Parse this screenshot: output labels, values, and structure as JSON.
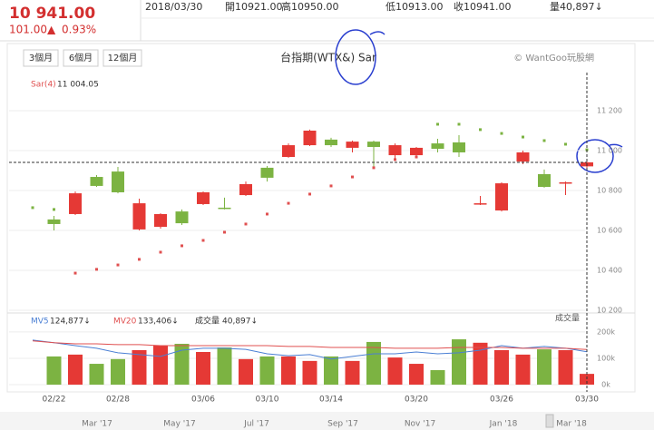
{
  "header": {
    "price": "10 941.00",
    "change": "101.00▲",
    "change_pct": "0.93%",
    "date": "2018/03/30",
    "open": "開10921.00",
    "high": "高10950.00",
    "low": "低10913.00",
    "close": "收10941.00",
    "volume": "量40,897↓"
  },
  "buttons": [
    "3個月",
    "6個月",
    "12個月"
  ],
  "navigator": [
    "Mar '17",
    "May '17",
    "Jul '17",
    "Sep '17",
    "Nov '17",
    "Jan '18",
    "Mar '18"
  ],
  "chart_data": [
    {
      "type": "candlestick",
      "title": "台指期(WTX&) Sar",
      "source": "© WantGoo玩股網",
      "up_color": "#e53935",
      "down_color": "#7cb342",
      "open": [
        null,
        10655,
        10682,
        10868,
        10895,
        10605,
        10618,
        10695,
        10732,
        10714,
        10777,
        10914,
        10968,
        11027,
        11055,
        11014,
        11045,
        10977,
        10977,
        11036,
        11041,
        10732,
        10700,
        10945,
        10882,
        10836,
        10921
      ],
      "high": [
        null,
        10673,
        10795,
        10877,
        10918,
        10759,
        10686,
        10705,
        10795,
        10764,
        10845,
        10923,
        11036,
        11105,
        11064,
        11050,
        11050,
        11036,
        11018,
        11059,
        11077,
        10773,
        10841,
        11000,
        10905,
        10845,
        10950
      ],
      "low": [
        null,
        10600,
        10677,
        10818,
        10786,
        10600,
        10609,
        10627,
        10727,
        10705,
        10773,
        10845,
        10964,
        11023,
        11018,
        10991,
        10914,
        10959,
        10968,
        10991,
        10968,
        10727,
        10695,
        10932,
        10814,
        10777,
        10913
      ],
      "close": [
        null,
        10632,
        10786,
        10823,
        10791,
        10736,
        10682,
        10636,
        10791,
        10709,
        10832,
        10864,
        11027,
        11100,
        11027,
        11045,
        11018,
        11027,
        11014,
        11009,
        10991,
        10736,
        10836,
        10991,
        10818,
        10841,
        10941
      ],
      "series": [
        {
          "name": "Sar(4)",
          "color": "#e05050",
          "down_color": "#7cb342",
          "last_label": "11 004.05",
          "values": [
            10714,
            10705,
            10386,
            10405,
            10427,
            10455,
            10491,
            10523,
            10550,
            10591,
            10632,
            10682,
            10736,
            10782,
            10823,
            10868,
            10914,
            10955,
            10968,
            11132,
            11132,
            11105,
            11086,
            11068,
            11050,
            11032,
            11004.05
          ]
        }
      ],
      "ylim": [
        10200,
        11300
      ],
      "yticks": [
        {
          "value": 10200,
          "label": "10 200"
        },
        {
          "value": 10400,
          "label": "10 400"
        },
        {
          "value": 10600,
          "label": "10 600"
        },
        {
          "value": 10800,
          "label": "10 800"
        },
        {
          "value": 11000,
          "label": "11 000"
        },
        {
          "value": 11200,
          "label": "11 200"
        }
      ],
      "grid": true
    },
    {
      "type": "bar",
      "categories": [
        null,
        "02/22",
        null,
        null,
        "02/28",
        null,
        null,
        null,
        "03/06",
        null,
        null,
        "03/10",
        null,
        null,
        "03/14",
        null,
        null,
        null,
        "03/20",
        null,
        null,
        null,
        "03/26",
        null,
        null,
        null,
        "03/30"
      ],
      "series": [
        {
          "name": "成交量",
          "last_label": "40,897↓",
          "values": [
            null,
            107000,
            114000,
            79000,
            97000,
            131000,
            148000,
            155000,
            124000,
            141000,
            97000,
            107000,
            107000,
            90000,
            107000,
            90000,
            162000,
            103000,
            79000,
            55000,
            172000,
            159000,
            131000,
            114000,
            134000,
            131000,
            40897
          ]
        },
        {
          "name": "MV5",
          "color": "#4a7fd4",
          "last_label": "124,877↓",
          "values": [
            169000,
            159000,
            148000,
            138000,
            121000,
            114000,
            107000,
            131000,
            138000,
            138000,
            134000,
            117000,
            110000,
            114000,
            97000,
            107000,
            117000,
            117000,
            124000,
            117000,
            121000,
            131000,
            148000,
            138000,
            145000,
            138000,
            124877
          ]
        },
        {
          "name": "MV20",
          "color": "#e05050",
          "last_label": "133,406↓",
          "values": [
            166000,
            159000,
            155000,
            155000,
            152000,
            152000,
            148000,
            148000,
            148000,
            148000,
            148000,
            148000,
            145000,
            145000,
            141000,
            141000,
            141000,
            138000,
            138000,
            138000,
            141000,
            141000,
            141000,
            138000,
            138000,
            138000,
            133406
          ]
        }
      ],
      "ylim": [
        0,
        272000
      ],
      "yticks": [
        {
          "value": 0,
          "label": "0k"
        },
        {
          "value": 100000,
          "label": "100k"
        },
        {
          "value": 200000,
          "label": "200k"
        }
      ],
      "grid": true
    }
  ]
}
